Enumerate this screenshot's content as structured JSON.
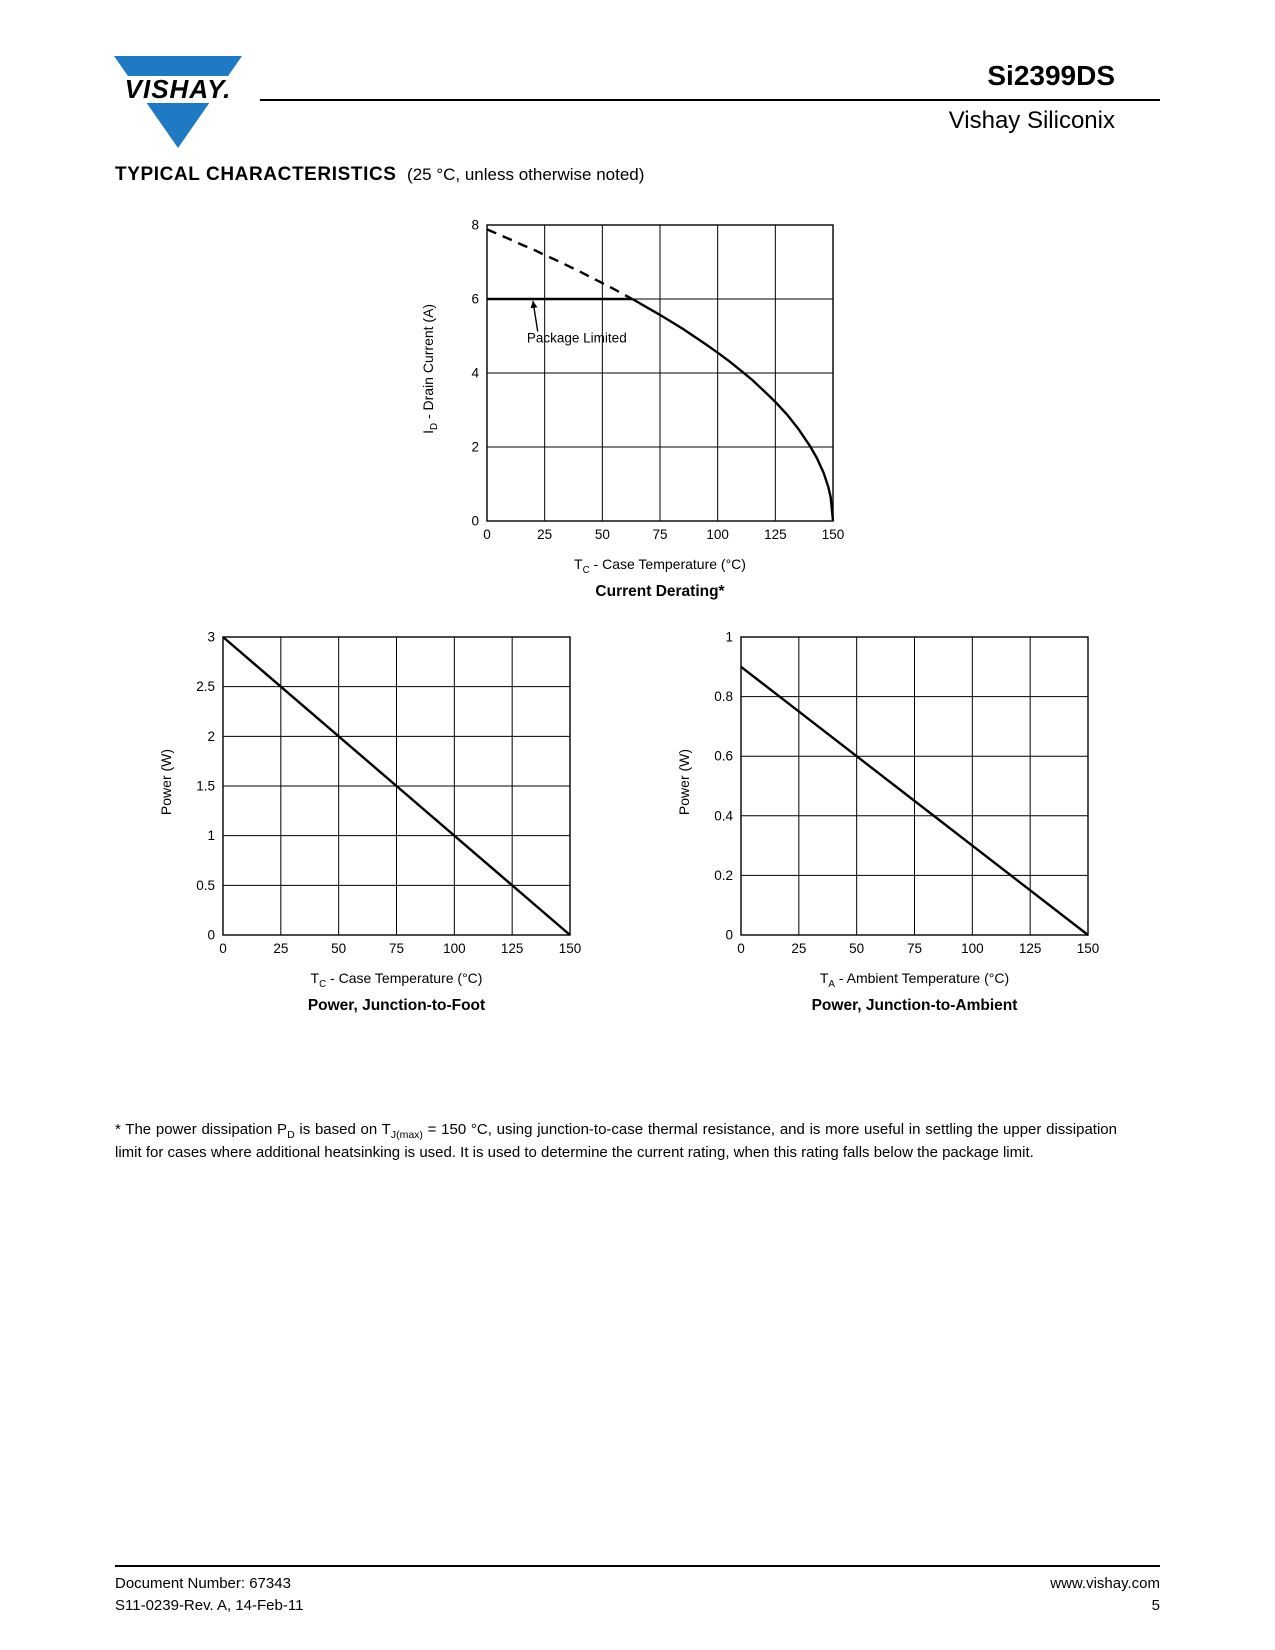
{
  "header": {
    "logo_text": "VISHAY.",
    "part_number": "Si2399DS",
    "division": "Vishay Siliconix"
  },
  "section": {
    "title": "TYPICAL CHARACTERISTICS",
    "subtitle": "(25 °C, unless otherwise noted)"
  },
  "chart_data": [
    {
      "id": "current-derating",
      "type": "line",
      "title": "Current Derating*",
      "xlabel_segments": [
        {
          "t": "T"
        },
        {
          "sub": "C"
        },
        {
          "t": " - Case Temperature (°C)"
        }
      ],
      "ylabel_segments": [
        {
          "t": "I"
        },
        {
          "sub": "D"
        },
        {
          "t": " - Drain Current (A)"
        }
      ],
      "xlim": [
        0,
        150
      ],
      "ylim": [
        0,
        8
      ],
      "xticks": [
        0,
        25,
        50,
        75,
        100,
        125,
        150
      ],
      "yticks": [
        0,
        2,
        4,
        6,
        8
      ],
      "grid": true,
      "legend": "none",
      "series": [
        {
          "name": "thermal-limit-extension",
          "dash": "10,7",
          "x": [
            0,
            5,
            10,
            15,
            20,
            25,
            30,
            35,
            40,
            45,
            50,
            55,
            60,
            63
          ],
          "y": [
            7.88,
            7.75,
            7.61,
            7.47,
            7.34,
            7.19,
            7.05,
            6.9,
            6.75,
            6.59,
            6.43,
            6.27,
            6.1,
            6.0
          ]
        },
        {
          "name": "package-limit-line",
          "dash": null,
          "x": [
            0,
            63
          ],
          "y": [
            6,
            6
          ]
        },
        {
          "name": "derated-drain-current",
          "dash": null,
          "x": [
            63,
            70,
            75,
            80,
            85,
            90,
            95,
            100,
            105,
            110,
            115,
            120,
            125,
            130,
            135,
            140,
            143,
            146,
            148,
            149,
            150
          ],
          "y": [
            6.0,
            5.75,
            5.57,
            5.38,
            5.19,
            4.98,
            4.77,
            4.55,
            4.32,
            4.07,
            3.81,
            3.52,
            3.22,
            2.88,
            2.49,
            2.03,
            1.7,
            1.29,
            0.91,
            0.64,
            0
          ]
        }
      ],
      "annotation": {
        "text": "Package Limited",
        "text_x": 17.3,
        "text_y": 4.82,
        "arrow": {
          "x1": 22.0,
          "y1": 5.12,
          "x2": 19.9,
          "y2": 5.95
        }
      }
    },
    {
      "id": "power-junction-to-foot",
      "type": "line",
      "title": "Power, Junction-to-Foot",
      "xlabel_segments": [
        {
          "t": "T"
        },
        {
          "sub": "C"
        },
        {
          "t": " - Case Temperature (°C)"
        }
      ],
      "ylabel_segments": [
        {
          "t": "Power (W)"
        }
      ],
      "xlim": [
        0,
        150
      ],
      "ylim": [
        0,
        3
      ],
      "xticks": [
        0,
        25,
        50,
        75,
        100,
        125,
        150
      ],
      "yticks": [
        0,
        0.5,
        1,
        1.5,
        2,
        2.5,
        3
      ],
      "grid": true,
      "legend": "none",
      "series": [
        {
          "name": "power-dissipation",
          "dash": null,
          "x": [
            0,
            150
          ],
          "y": [
            3,
            0
          ]
        }
      ]
    },
    {
      "id": "power-junction-to-ambient",
      "type": "line",
      "title": "Power, Junction-to-Ambient",
      "xlabel_segments": [
        {
          "t": "T"
        },
        {
          "sub": "A"
        },
        {
          "t": " - Ambient Temperature (°C)"
        }
      ],
      "ylabel_segments": [
        {
          "t": "Power (W)"
        }
      ],
      "xlim": [
        0,
        150
      ],
      "ylim": [
        0,
        1
      ],
      "xticks": [
        0,
        25,
        50,
        75,
        100,
        125,
        150
      ],
      "yticks": [
        0,
        0.2,
        0.4,
        0.6,
        0.8,
        1
      ],
      "grid": true,
      "legend": "none",
      "series": [
        {
          "name": "power-dissipation",
          "dash": null,
          "x": [
            0,
            150
          ],
          "y": [
            0.9,
            0
          ]
        }
      ]
    }
  ],
  "footnote": {
    "segments": [
      {
        "t": "* The power dissipation P"
      },
      {
        "sub": "D"
      },
      {
        "t": " is based on T"
      },
      {
        "sub": "J(max)"
      },
      {
        "t": " = 150 °C, using junction-to-case thermal resistance, and is more useful in settling the upper dissipation limit for cases where additional heatsinking is used. It is used to determine the current rating, when this rating falls below the package limit."
      }
    ]
  },
  "footer": {
    "doc_number": "Document Number: 67343",
    "revision": "S11-0239-Rev. A, 14-Feb-11",
    "website": "www.vishay.com",
    "page": "5"
  }
}
